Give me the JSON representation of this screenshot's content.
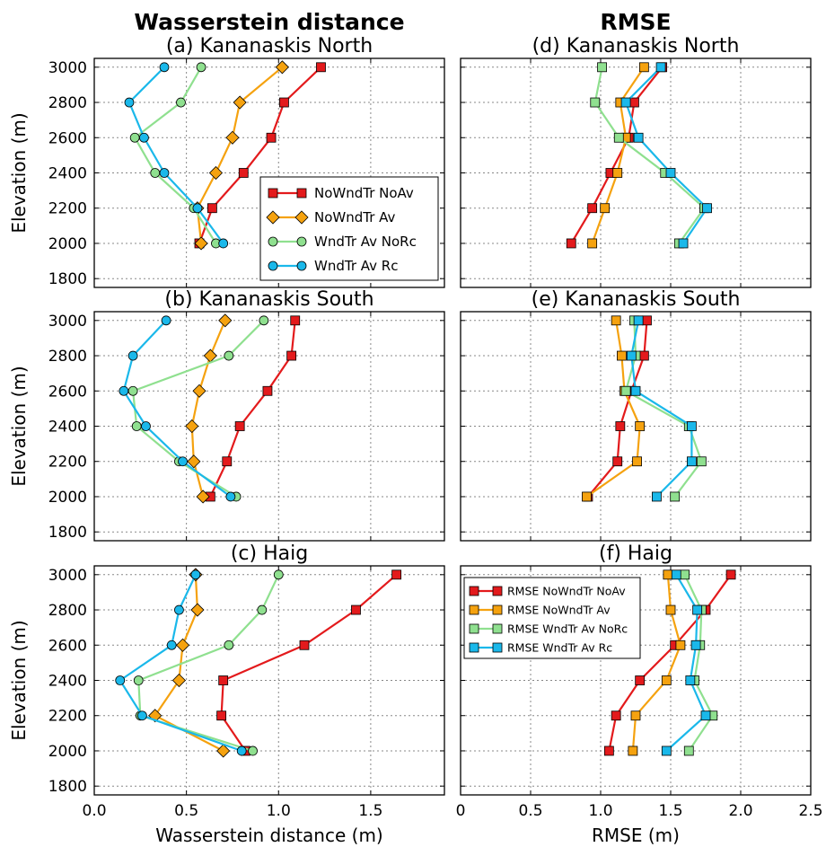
{
  "column_titles": [
    "Wasserstein distance",
    "RMSE"
  ],
  "legend_wass": [
    "NoWndTr NoAv",
    "NoWndTr Av",
    "WndTr Av NoRc",
    "WndTr Av Rc"
  ],
  "legend_rmse": [
    "RMSE NoWndTr NoAv",
    "RMSE NoWndTr Av",
    "RMSE WndTr Av NoRc",
    "RMSE WndTr Av Rc"
  ],
  "series_colors": [
    "#e31a1c",
    "#f5a20f",
    "#8fe08f",
    "#1ab8ea"
  ],
  "series_markers": [
    "square",
    "diamond",
    "circle",
    "circle"
  ],
  "chart_data": [
    {
      "type": "line",
      "panel": "a",
      "title": "(a)  Kananaskis North",
      "xlabel": "",
      "ylabel": "Elevation (m)",
      "xlim": [
        0,
        1.9
      ],
      "ylim": [
        1750,
        3050
      ],
      "xticks": [],
      "yticks": [
        "1800",
        "2000",
        "2200",
        "2400",
        "2600",
        "2800",
        "3000"
      ],
      "grid": true,
      "series": [
        {
          "name": "NoWndTr NoAv",
          "x": [
            0.57,
            0.64,
            0.81,
            0.96,
            1.03,
            1.23
          ],
          "y": [
            2000,
            2200,
            2400,
            2600,
            2800,
            3000
          ]
        },
        {
          "name": "NoWndTr Av",
          "x": [
            0.58,
            0.56,
            0.66,
            0.75,
            0.79,
            1.02
          ],
          "y": [
            2000,
            2200,
            2400,
            2600,
            2800,
            3000
          ]
        },
        {
          "name": "WndTr Av NoRc",
          "x": [
            0.66,
            0.54,
            0.33,
            0.22,
            0.47,
            0.58
          ],
          "y": [
            2000,
            2200,
            2400,
            2600,
            2800,
            3000
          ]
        },
        {
          "name": "WndTr Av Rc",
          "x": [
            0.7,
            0.56,
            0.38,
            0.27,
            0.19,
            0.38
          ],
          "y": [
            2000,
            2200,
            2400,
            2600,
            2800,
            3000
          ]
        }
      ]
    },
    {
      "type": "line",
      "panel": "b",
      "title": "(b)  Kananaskis South",
      "xlabel": "",
      "ylabel": "Elevation (m)",
      "xlim": [
        0,
        1.9
      ],
      "ylim": [
        1750,
        3050
      ],
      "xticks": [],
      "yticks": [
        "1800",
        "2000",
        "2200",
        "2400",
        "2600",
        "2800",
        "3000"
      ],
      "grid": true,
      "series": [
        {
          "name": "NoWndTr NoAv",
          "x": [
            0.63,
            0.72,
            0.79,
            0.94,
            1.07,
            1.09
          ],
          "y": [
            2000,
            2200,
            2400,
            2600,
            2800,
            3000
          ]
        },
        {
          "name": "NoWndTr Av",
          "x": [
            0.59,
            0.54,
            0.53,
            0.57,
            0.63,
            0.71
          ],
          "y": [
            2000,
            2200,
            2400,
            2600,
            2800,
            3000
          ]
        },
        {
          "name": "WndTr Av NoRc",
          "x": [
            0.77,
            0.46,
            0.23,
            0.21,
            0.73,
            0.92
          ],
          "y": [
            2000,
            2200,
            2400,
            2600,
            2800,
            3000
          ]
        },
        {
          "name": "WndTr Av Rc",
          "x": [
            0.74,
            0.48,
            0.28,
            0.16,
            0.21,
            0.39
          ],
          "y": [
            2000,
            2200,
            2400,
            2600,
            2800,
            3000
          ]
        }
      ]
    },
    {
      "type": "line",
      "panel": "c",
      "title": "(c)  Haig",
      "xlabel": "Wasserstein distance (m)",
      "ylabel": "Elevation (m)",
      "xlim": [
        0,
        1.9
      ],
      "ylim": [
        1750,
        3050
      ],
      "xticks": [
        "0.0",
        "0.5",
        "1.0",
        "1.5"
      ],
      "yticks": [
        "1800",
        "2000",
        "2200",
        "2400",
        "2600",
        "2800",
        "3000"
      ],
      "grid": true,
      "series": [
        {
          "name": "NoWndTr NoAv",
          "x": [
            0.82,
            0.69,
            0.7,
            1.14,
            1.42,
            1.64
          ],
          "y": [
            2000,
            2200,
            2400,
            2600,
            2800,
            3000
          ]
        },
        {
          "name": "NoWndTr Av",
          "x": [
            0.7,
            0.33,
            0.46,
            0.48,
            0.56,
            0.55
          ],
          "y": [
            2000,
            2200,
            2400,
            2600,
            2800,
            3000
          ]
        },
        {
          "name": "WndTr Av NoRc",
          "x": [
            0.86,
            0.25,
            0.24,
            0.73,
            0.91,
            1.0
          ],
          "y": [
            2000,
            2200,
            2400,
            2600,
            2800,
            3000
          ]
        },
        {
          "name": "WndTr Av Rc",
          "x": [
            0.8,
            0.26,
            0.14,
            0.42,
            0.46,
            0.55
          ],
          "y": [
            2000,
            2200,
            2400,
            2600,
            2800,
            3000
          ]
        }
      ]
    },
    {
      "type": "line",
      "panel": "d",
      "title": "(d)  Kananaskis North",
      "xlabel": "",
      "ylabel": "",
      "xlim": [
        0,
        2.5
      ],
      "ylim": [
        1750,
        3050
      ],
      "xticks": [],
      "yticks": [],
      "grid": true,
      "series": [
        {
          "name": "RMSE NoWndTr NoAv",
          "x": [
            0.79,
            0.94,
            1.07,
            1.2,
            1.24,
            1.44
          ],
          "y": [
            2000,
            2200,
            2400,
            2600,
            2800,
            3000
          ]
        },
        {
          "name": "RMSE NoWndTr Av",
          "x": [
            0.94,
            1.03,
            1.12,
            1.18,
            1.14,
            1.31
          ],
          "y": [
            2000,
            2200,
            2400,
            2600,
            2800,
            3000
          ]
        },
        {
          "name": "RMSE WndTr Av NoRc",
          "x": [
            1.56,
            1.74,
            1.46,
            1.13,
            0.96,
            1.01
          ],
          "y": [
            2000,
            2200,
            2400,
            2600,
            2800,
            3000
          ]
        },
        {
          "name": "RMSE WndTr Av Rc",
          "x": [
            1.59,
            1.76,
            1.5,
            1.27,
            1.18,
            1.43
          ],
          "y": [
            2000,
            2200,
            2400,
            2600,
            2800,
            3000
          ]
        }
      ]
    },
    {
      "type": "line",
      "panel": "e",
      "title": "(e)  Kananaskis South",
      "xlabel": "",
      "ylabel": "",
      "xlim": [
        0,
        2.5
      ],
      "ylim": [
        1750,
        3050
      ],
      "xticks": [],
      "yticks": [],
      "grid": true,
      "series": [
        {
          "name": "RMSE NoWndTr NoAv",
          "x": [
            0.91,
            1.12,
            1.14,
            1.22,
            1.31,
            1.33
          ],
          "y": [
            2000,
            2200,
            2400,
            2600,
            2800,
            3000
          ]
        },
        {
          "name": "RMSE NoWndTr Av",
          "x": [
            0.9,
            1.26,
            1.28,
            1.17,
            1.15,
            1.11
          ],
          "y": [
            2000,
            2200,
            2400,
            2600,
            2800,
            3000
          ]
        },
        {
          "name": "RMSE WndTr Av NoRc",
          "x": [
            1.53,
            1.72,
            1.63,
            1.18,
            1.25,
            1.24
          ],
          "y": [
            2000,
            2200,
            2400,
            2600,
            2800,
            3000
          ]
        },
        {
          "name": "RMSE WndTr Av Rc",
          "x": [
            1.4,
            1.65,
            1.65,
            1.25,
            1.22,
            1.27
          ],
          "y": [
            2000,
            2200,
            2400,
            2600,
            2800,
            3000
          ]
        }
      ]
    },
    {
      "type": "line",
      "panel": "f",
      "title": "(f)  Haig",
      "xlabel": "RMSE (m)",
      "ylabel": "",
      "xlim": [
        0,
        2.5
      ],
      "ylim": [
        1750,
        3050
      ],
      "xticks": [
        "0",
        "0.5",
        "1.0",
        "1.5",
        "2.0",
        "2.5"
      ],
      "yticks": [],
      "grid": true,
      "series": [
        {
          "name": "RMSE NoWndTr NoAv",
          "x": [
            1.06,
            1.11,
            1.28,
            1.53,
            1.75,
            1.93
          ],
          "y": [
            2000,
            2200,
            2400,
            2600,
            2800,
            3000
          ]
        },
        {
          "name": "RMSE NoWndTr Av",
          "x": [
            1.23,
            1.25,
            1.47,
            1.57,
            1.5,
            1.48
          ],
          "y": [
            2000,
            2200,
            2400,
            2600,
            2800,
            3000
          ]
        },
        {
          "name": "RMSE WndTr Av NoRc",
          "x": [
            1.63,
            1.8,
            1.67,
            1.71,
            1.72,
            1.6
          ],
          "y": [
            2000,
            2200,
            2400,
            2600,
            2800,
            3000
          ]
        },
        {
          "name": "RMSE WndTr Av Rc",
          "x": [
            1.47,
            1.75,
            1.64,
            1.68,
            1.69,
            1.54
          ],
          "y": [
            2000,
            2200,
            2400,
            2600,
            2800,
            3000
          ]
        }
      ]
    }
  ]
}
